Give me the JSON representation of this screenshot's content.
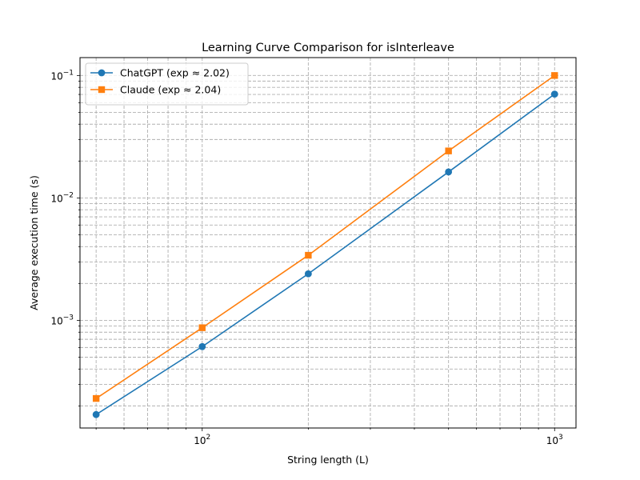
{
  "chart_data": {
    "type": "line",
    "title": "Learning Curve Comparison for isInterleave",
    "xlabel": "String length (L)",
    "ylabel": "Average execution time (s)",
    "xscale": "log",
    "yscale": "log",
    "xlim": [
      45,
      1150
    ],
    "ylim": [
      0.000132,
      0.14
    ],
    "grid": true,
    "legend_position": "top-left",
    "x_ticks": [
      {
        "value": 100,
        "base": "10",
        "exp": "2"
      },
      {
        "value": 1000,
        "base": "10",
        "exp": "3"
      }
    ],
    "y_ticks": [
      {
        "value": 0.001,
        "base": "10",
        "exp": "−3"
      },
      {
        "value": 0.01,
        "base": "10",
        "exp": "−2"
      },
      {
        "value": 0.1,
        "base": "10",
        "exp": "−1"
      }
    ],
    "series": [
      {
        "name": "ChatGPT (exp ≈ 2.02)",
        "color": "#1f77b4",
        "marker": "circle",
        "x": [
          50,
          100,
          200,
          500,
          1000
        ],
        "y": [
          0.00017,
          0.00061,
          0.0024,
          0.0163,
          0.0705
        ]
      },
      {
        "name": "Claude (exp ≈ 2.04)",
        "color": "#ff7f0e",
        "marker": "square",
        "x": [
          50,
          100,
          200,
          500,
          1000
        ],
        "y": [
          0.00023,
          0.00087,
          0.0034,
          0.0242,
          0.1
        ]
      }
    ]
  }
}
